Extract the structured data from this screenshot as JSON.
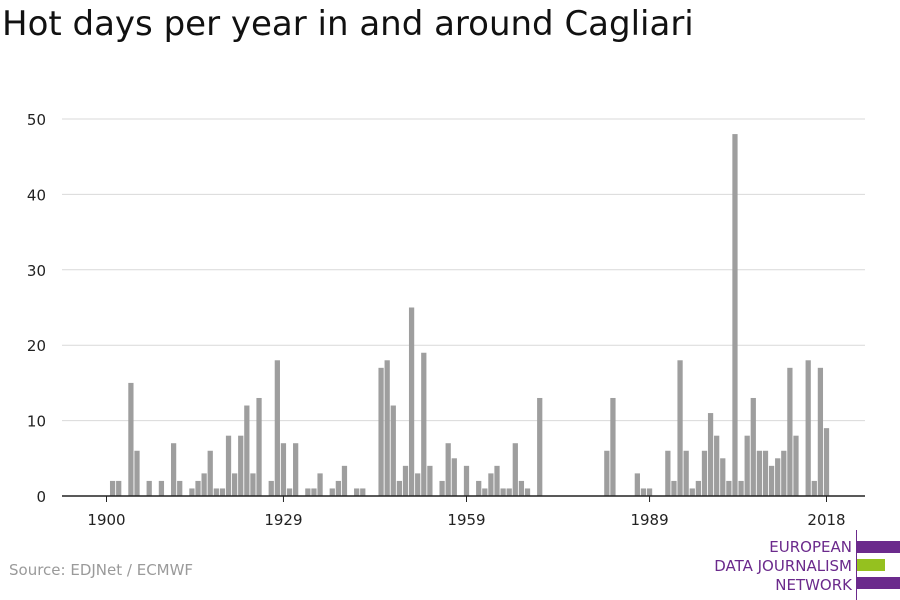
{
  "title": "Hot days per year in and around Cagliari",
  "source": "Source: EDJNet / ECMWF",
  "logo": {
    "line1": "EUROPEAN",
    "line2": "DATA JOURNALISM",
    "line3": "NETWORK",
    "colors": {
      "purple": "#6b2a8c",
      "green": "#95c11f"
    }
  },
  "chart_data": {
    "type": "bar",
    "title": "Hot days per year in and around Cagliari",
    "xlabel": "",
    "ylabel": "",
    "ylim": [
      0,
      50
    ],
    "yticks": [
      0,
      10,
      20,
      30,
      40,
      50
    ],
    "xticks": [
      1900,
      1929,
      1959,
      1989,
      2018
    ],
    "grid": true,
    "bar_color": "#9e9e9e",
    "x": [
      1900,
      1901,
      1902,
      1903,
      1904,
      1905,
      1906,
      1907,
      1908,
      1909,
      1910,
      1911,
      1912,
      1913,
      1914,
      1915,
      1916,
      1917,
      1918,
      1919,
      1920,
      1921,
      1922,
      1923,
      1924,
      1925,
      1926,
      1927,
      1928,
      1929,
      1930,
      1931,
      1932,
      1933,
      1934,
      1935,
      1936,
      1937,
      1938,
      1939,
      1940,
      1941,
      1942,
      1943,
      1944,
      1945,
      1946,
      1947,
      1948,
      1949,
      1950,
      1951,
      1952,
      1953,
      1954,
      1955,
      1956,
      1957,
      1958,
      1959,
      1960,
      1961,
      1962,
      1963,
      1964,
      1965,
      1966,
      1967,
      1968,
      1969,
      1970,
      1971,
      1972,
      1973,
      1974,
      1975,
      1976,
      1977,
      1978,
      1979,
      1980,
      1981,
      1982,
      1983,
      1984,
      1985,
      1986,
      1987,
      1988,
      1989,
      1990,
      1991,
      1992,
      1993,
      1994,
      1995,
      1996,
      1997,
      1998,
      1999,
      2000,
      2001,
      2002,
      2003,
      2004,
      2005,
      2006,
      2007,
      2008,
      2009,
      2010,
      2011,
      2012,
      2013,
      2014,
      2015,
      2016,
      2017,
      2018
    ],
    "values": [
      0,
      2,
      2,
      0,
      15,
      6,
      0,
      2,
      0,
      2,
      0,
      7,
      2,
      0,
      1,
      2,
      3,
      6,
      1,
      1,
      8,
      3,
      8,
      12,
      3,
      13,
      0,
      2,
      18,
      7,
      1,
      7,
      0,
      1,
      1,
      3,
      0,
      1,
      2,
      4,
      0,
      1,
      1,
      0,
      0,
      17,
      18,
      12,
      2,
      4,
      25,
      3,
      19,
      4,
      0,
      2,
      7,
      5,
      0,
      4,
      0,
      2,
      1,
      3,
      4,
      1,
      1,
      7,
      2,
      1,
      0,
      13,
      0,
      0,
      0,
      0,
      0,
      0,
      0,
      0,
      0,
      0,
      6,
      13,
      0,
      0,
      0,
      3,
      1,
      1,
      0,
      0,
      6,
      2,
      18,
      6,
      1,
      2,
      6,
      11,
      8,
      5,
      2,
      48,
      2,
      8,
      13,
      6,
      6,
      4,
      5,
      6,
      17,
      8,
      0,
      18,
      2,
      17,
      9
    ]
  }
}
